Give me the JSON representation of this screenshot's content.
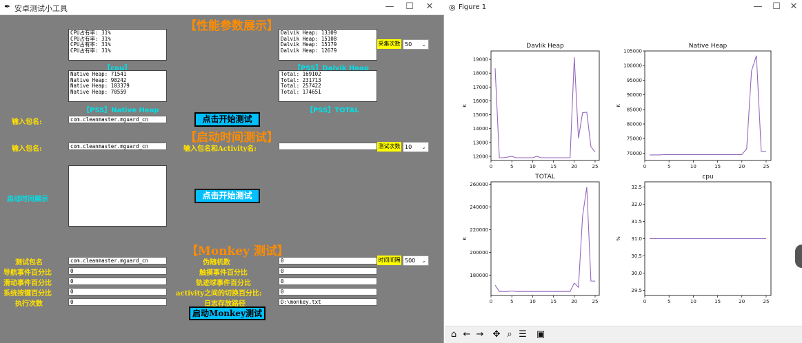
{
  "tk": {
    "title": "安卓测试小工具",
    "perf_title": "【性能参数展示】",
    "cpu_text": "CPU占有率: 31%\nCPU占有率: 31%\nCPU占有率: 31%\nCPU占有率: 31%",
    "dalvik_text": "Dalvik Heap: 13309\nDalvik Heap: 15108\nDalvik Heap: 15179\nDalvik Heap: 12679",
    "sample_label": "采集次数",
    "sample_value": "50",
    "cpu_label": "【cpu】",
    "dalvik_label": "【PSS】Dalvik Heap",
    "native_text": "Native Heap: 71541\nNative Heap: 98242\nNative Heap: 103379\nNative Heap: 70559",
    "total_text": "Total: 169102\nTotal: 231713\nTotal: 257422\nTotal: 174651",
    "native_label": "【PSS】Native Heap",
    "total_label": "【PSS】TOTAL",
    "pkg_label": "输入包名:",
    "pkg_value": "com.cleanmaster.mguard_cn",
    "start_btn": "点击开始测试",
    "launch_title": "【启动时间测试】",
    "pkg_label2": "输入包名:",
    "pkg_value2": "com.cleanmaster.mguard_cn",
    "activity_label": "输入包名和Activity名:",
    "activity_value": "",
    "test_count_label": "测试次数",
    "test_count_value": "10",
    "launch_display_label": "启动时间展示",
    "start_btn2": "点击开始测试",
    "monkey_title": "【Monkey 测试】",
    "m_pkg_label": "测试包名",
    "m_pkg_value": "com.cleanmaster.mguard_cn",
    "m_seed_label": "伪随机数",
    "m_seed_value": "0",
    "m_interval_label": "时间间隔",
    "m_interval_value": "500",
    "m_nav_label": "导航事件百分比",
    "m_nav_value": "0",
    "m_touch_label": "触摸事件百分比",
    "m_touch_value": "0",
    "m_motion_label": "滑动事件百分比",
    "m_motion_value": "0",
    "m_trackball_label": "轨迹球事件百分比",
    "m_trackball_value": "0",
    "m_syskeys_label": "系统按键百分比",
    "m_syskeys_value": "0",
    "m_appswitch_label": "activity之间的切换百分比:",
    "m_appswitch_value": "0",
    "m_count_label": "执行次数",
    "m_count_value": "0",
    "m_log_label": "日志存放路径",
    "m_log_value": "D:\\monkey.txt",
    "m_start_btn": "启动Monkey测试"
  },
  "figure": {
    "title": "Figure 1",
    "line_color": "#9467bd"
  },
  "chart_data": [
    {
      "type": "line",
      "title": "Davlik Heap",
      "xlabel": "",
      "ylabel": "K",
      "xlim": [
        0,
        26
      ],
      "ylim": [
        11700,
        19600
      ],
      "xticks": [
        0,
        5,
        10,
        15,
        20,
        25
      ],
      "yticks": [
        12000,
        13000,
        14000,
        15000,
        16000,
        17000,
        18000,
        19000
      ],
      "x": [
        1,
        2,
        3,
        4,
        5,
        6,
        7,
        8,
        9,
        10,
        11,
        12,
        13,
        14,
        15,
        16,
        17,
        18,
        19,
        20,
        21,
        22,
        23,
        24,
        25
      ],
      "values": [
        18350,
        11900,
        11900,
        11950,
        12000,
        11900,
        11900,
        11900,
        11900,
        11900,
        12000,
        11900,
        11900,
        11900,
        11900,
        11900,
        11900,
        11900,
        11900,
        19150,
        13300,
        15150,
        15180,
        12700,
        12300
      ]
    },
    {
      "type": "line",
      "title": "Native Heap",
      "xlabel": "",
      "ylabel": "K",
      "xlim": [
        0,
        26
      ],
      "ylim": [
        67500,
        105000
      ],
      "xticks": [
        0,
        5,
        10,
        15,
        20,
        25
      ],
      "yticks": [
        70000,
        75000,
        80000,
        85000,
        90000,
        95000,
        100000,
        105000
      ],
      "x": [
        1,
        2,
        3,
        4,
        5,
        6,
        7,
        8,
        9,
        10,
        11,
        12,
        13,
        14,
        15,
        16,
        17,
        18,
        19,
        20,
        21,
        22,
        23,
        24,
        25
      ],
      "values": [
        69400,
        69400,
        69400,
        69500,
        69500,
        69500,
        69500,
        69500,
        69500,
        69500,
        69500,
        69500,
        69500,
        69500,
        69500,
        69500,
        69500,
        69500,
        69500,
        69500,
        71500,
        98200,
        103400,
        70600,
        70600
      ]
    },
    {
      "type": "line",
      "title": "TOTAL",
      "xlabel": "",
      "ylabel": "K",
      "xlim": [
        0,
        26
      ],
      "ylim": [
        162000,
        262000
      ],
      "xticks": [
        0,
        5,
        10,
        15,
        20,
        25
      ],
      "yticks": [
        180000,
        200000,
        220000,
        240000,
        260000
      ],
      "x": [
        1,
        2,
        3,
        4,
        5,
        6,
        7,
        8,
        9,
        10,
        11,
        12,
        13,
        14,
        15,
        16,
        17,
        18,
        19,
        20,
        21,
        22,
        23,
        24,
        25
      ],
      "values": [
        171000,
        165500,
        165500,
        165500,
        166000,
        165500,
        165500,
        165500,
        165500,
        165500,
        165500,
        165500,
        165500,
        165500,
        165500,
        165500,
        165500,
        165500,
        165500,
        173000,
        169100,
        231700,
        257400,
        174700,
        174600
      ]
    },
    {
      "type": "line",
      "title": "cpu",
      "xlabel": "",
      "ylabel": "%",
      "xlim": [
        0,
        26
      ],
      "ylim": [
        29.35,
        32.65
      ],
      "xticks": [
        0,
        5,
        10,
        15,
        20,
        25
      ],
      "yticks": [
        29.5,
        30.0,
        30.5,
        31.0,
        31.5,
        32.0,
        32.5
      ],
      "x": [
        1,
        2,
        3,
        4,
        5,
        6,
        7,
        8,
        9,
        10,
        11,
        12,
        13,
        14,
        15,
        16,
        17,
        18,
        19,
        20,
        21,
        22,
        23,
        24,
        25
      ],
      "values": [
        31,
        31,
        31,
        31,
        31,
        31,
        31,
        31,
        31,
        31,
        31,
        31,
        31,
        31,
        31,
        31,
        31,
        31,
        31,
        31,
        31,
        31,
        31,
        31,
        31
      ]
    }
  ]
}
